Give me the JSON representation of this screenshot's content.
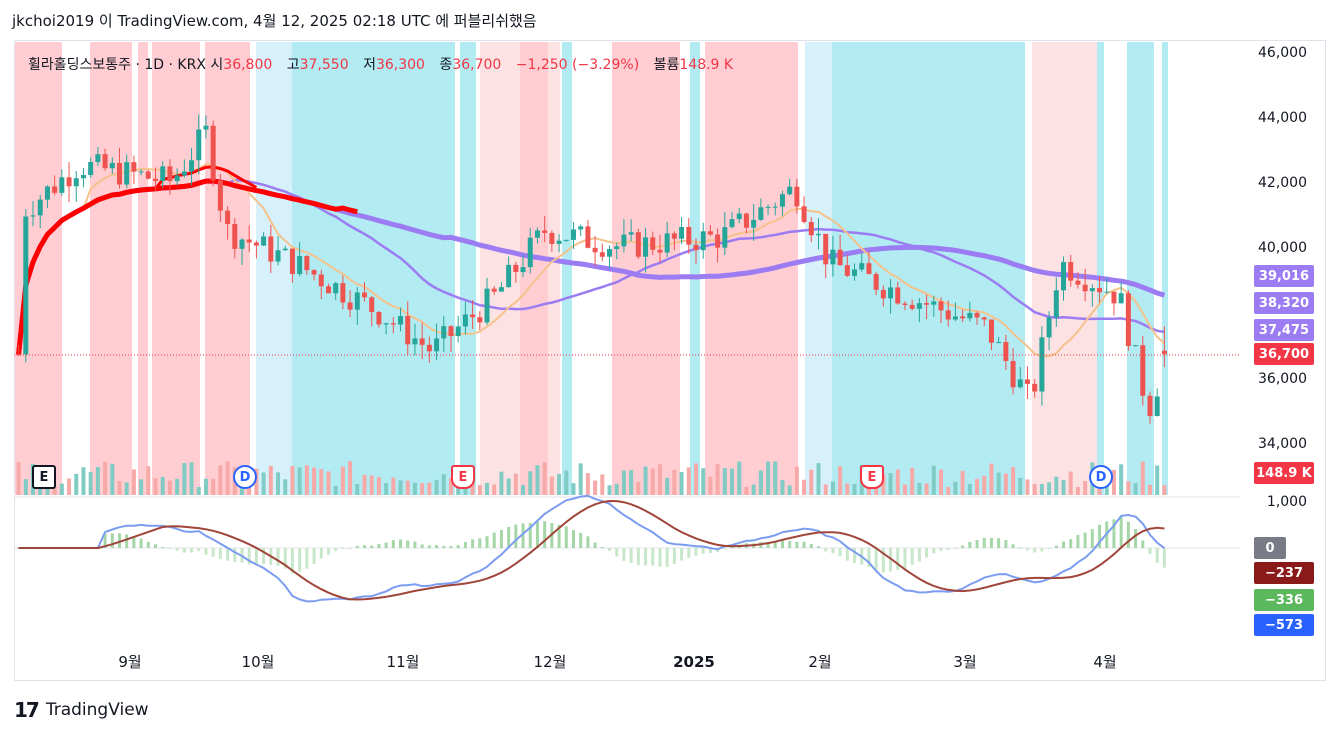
{
  "header": {
    "text": "jkchoi2019 이 TradingView.com, 4월 12, 2025 02:18 UTC 에 퍼블리쉬했음"
  },
  "legend": {
    "symbol": "휠라홀딩스보통주 · 1D · KRX",
    "open_label": "시",
    "open": "36,800",
    "high_label": "고",
    "high": "37,550",
    "low_label": "저",
    "low": "36,300",
    "close_label": "종",
    "close": "36,700",
    "change": "−1,250 (−3.29%)",
    "volume_label": "볼륨",
    "volume": "148.9 K"
  },
  "price_axis": [
    "46,000",
    "44,000",
    "42,000",
    "40,000",
    "36,000",
    "34,000",
    "1,000"
  ],
  "price_badges": [
    {
      "text": "39,016",
      "color": "#9b7cf2"
    },
    {
      "text": "38,320",
      "color": "#9b7cf2"
    },
    {
      "text": "37,475",
      "color": "#9b7cf2"
    },
    {
      "text": "36,700",
      "color": "#f23645"
    },
    {
      "text": "148.9 K",
      "color": "#f23645"
    }
  ],
  "macd_badges": [
    {
      "text": "0",
      "color": "#787b86"
    },
    {
      "text": "−237",
      "color": "#8b1a1a"
    },
    {
      "text": "−336",
      "color": "#5cb85c"
    },
    {
      "text": "−573",
      "color": "#2962ff"
    }
  ],
  "macd_axis_label": "0",
  "time_axis": [
    "9월",
    "10월",
    "11월",
    "12월",
    "2025",
    "2월",
    "3월",
    "4월"
  ],
  "events": [
    {
      "type": "E",
      "style": "box"
    },
    {
      "type": "D",
      "style": "circle"
    },
    {
      "type": "E",
      "style": "flag"
    },
    {
      "type": "E",
      "style": "flag"
    },
    {
      "type": "D",
      "style": "circle"
    }
  ],
  "footer": {
    "logo": "17",
    "brand": "TradingView"
  },
  "colors": {
    "up": "#26a69a",
    "down": "#ef5350",
    "bg_red": "#ffcdd2",
    "bg_cyan": "#b2ebf2",
    "ma_purple": "#9b7cf2",
    "ma_red": "#ff0000",
    "ma_orange": "#f6c28b"
  },
  "chart_data": {
    "type": "candlestick",
    "symbol": "휠라홀딩스보통주",
    "interval": "1D",
    "exchange": "KRX",
    "x_range": [
      "2024-08",
      "2025-04"
    ],
    "y_range": [
      33000,
      46500
    ],
    "last_ohlc": {
      "open": 36800,
      "high": 37550,
      "low": 36300,
      "close": 36700
    },
    "change": -1250,
    "change_pct": -3.29,
    "volume": "148.9 K",
    "moving_averages_last": [
      39016,
      38320,
      37475
    ],
    "macd_last": {
      "histogram": -336,
      "signal": -237,
      "macd": -573,
      "zero": 0
    },
    "approx_close_path": [
      [
        "2024-08-20",
        41000
      ],
      [
        "2024-09-01",
        42500
      ],
      [
        "2024-09-20",
        42000
      ],
      [
        "2024-09-27",
        43500
      ],
      [
        "2024-10-01",
        40500
      ],
      [
        "2024-10-15",
        39500
      ],
      [
        "2024-11-01",
        38000
      ],
      [
        "2024-11-12",
        36800
      ],
      [
        "2024-11-25",
        38500
      ],
      [
        "2024-12-05",
        40500
      ],
      [
        "2024-12-20",
        40000
      ],
      [
        "2025-01-10",
        40300
      ],
      [
        "2025-01-25",
        41800
      ],
      [
        "2025-02-01",
        39500
      ],
      [
        "2025-02-20",
        38300
      ],
      [
        "2025-03-05",
        37500
      ],
      [
        "2025-03-14",
        35200
      ],
      [
        "2025-03-20",
        39500
      ],
      [
        "2025-04-01",
        38500
      ],
      [
        "2025-04-07",
        35000
      ],
      [
        "2025-04-11",
        36700
      ]
    ]
  }
}
